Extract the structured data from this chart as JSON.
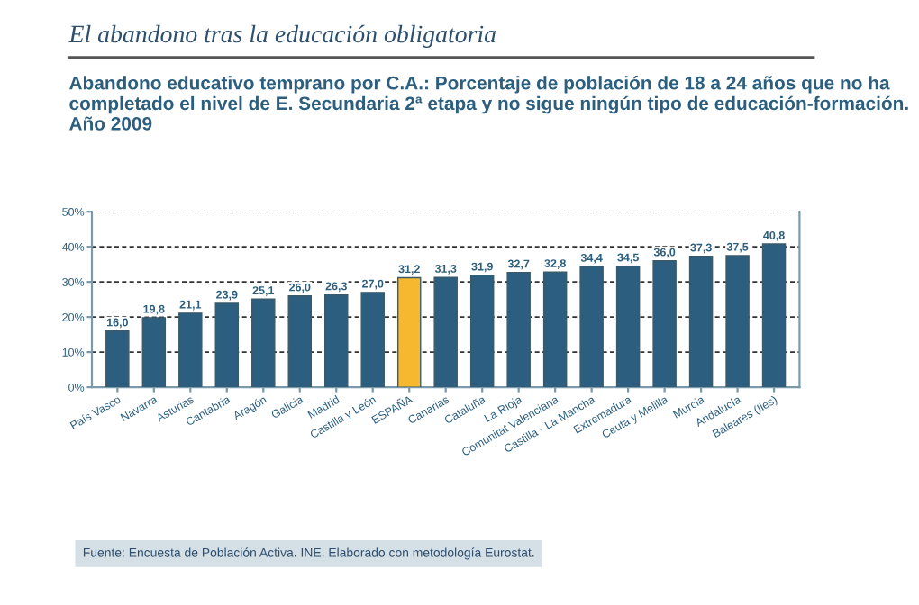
{
  "chart_data": {
    "type": "bar",
    "title": "El abandono tras la educación obligatoria",
    "subtitle": "Abandono educativo temprano por C.A.: Porcentaje de población de 18 a 24 años que no ha completado el nivel de E. Secundaria 2ª etapa y no sigue ningún tipo de educación-formación. Año 2009",
    "categories": [
      "País Vasco",
      "Navarra",
      "Asturias",
      "Cantabria",
      "Aragón",
      "Galicia",
      "Madrid",
      "Castilla y León",
      "ESPAÑA",
      "Canarias",
      "Cataluña",
      "La Rioja",
      "Comunitat Valenciana",
      "Castilla - La Mancha",
      "Extremadura",
      "Ceuta y Melilla",
      "Murcia",
      "Andalucía",
      "Baleares (Iles)"
    ],
    "values": [
      16.0,
      19.8,
      21.1,
      23.9,
      25.1,
      26.0,
      26.3,
      27.0,
      31.2,
      31.3,
      31.9,
      32.7,
      32.8,
      34.4,
      34.5,
      36.0,
      37.3,
      37.5,
      40.8
    ],
    "value_labels": [
      "16,0",
      "19,8",
      "21,1",
      "23,9",
      "25,1",
      "26,0",
      "26,3",
      "27,0",
      "31,2",
      "31,3",
      "31,9",
      "32,7",
      "32,8",
      "34,4",
      "34,5",
      "36,0",
      "37,3",
      "37,5",
      "40,8"
    ],
    "colors": [
      "#2c5f7f",
      "#2c5f7f",
      "#2c5f7f",
      "#2c5f7f",
      "#2c5f7f",
      "#2c5f7f",
      "#2c5f7f",
      "#2c5f7f",
      "#f5b82e",
      "#2c5f7f",
      "#2c5f7f",
      "#2c5f7f",
      "#2c5f7f",
      "#2c5f7f",
      "#2c5f7f",
      "#2c5f7f",
      "#2c5f7f",
      "#2c5f7f",
      "#2c5f7f"
    ],
    "ylim": [
      0,
      50
    ],
    "yticks": [
      {
        "value": 0,
        "label": "0%"
      },
      {
        "value": 10,
        "label": "10%"
      },
      {
        "value": 20,
        "label": "20%"
      },
      {
        "value": 30,
        "label": "30%"
      },
      {
        "value": 40,
        "label": "40%"
      },
      {
        "value": 50,
        "label": "50%"
      }
    ],
    "grid": "y",
    "annotations": [
      "Fuente: Encuesta de Población Activa. INE. Elaborado con metodología Eurostat."
    ]
  }
}
